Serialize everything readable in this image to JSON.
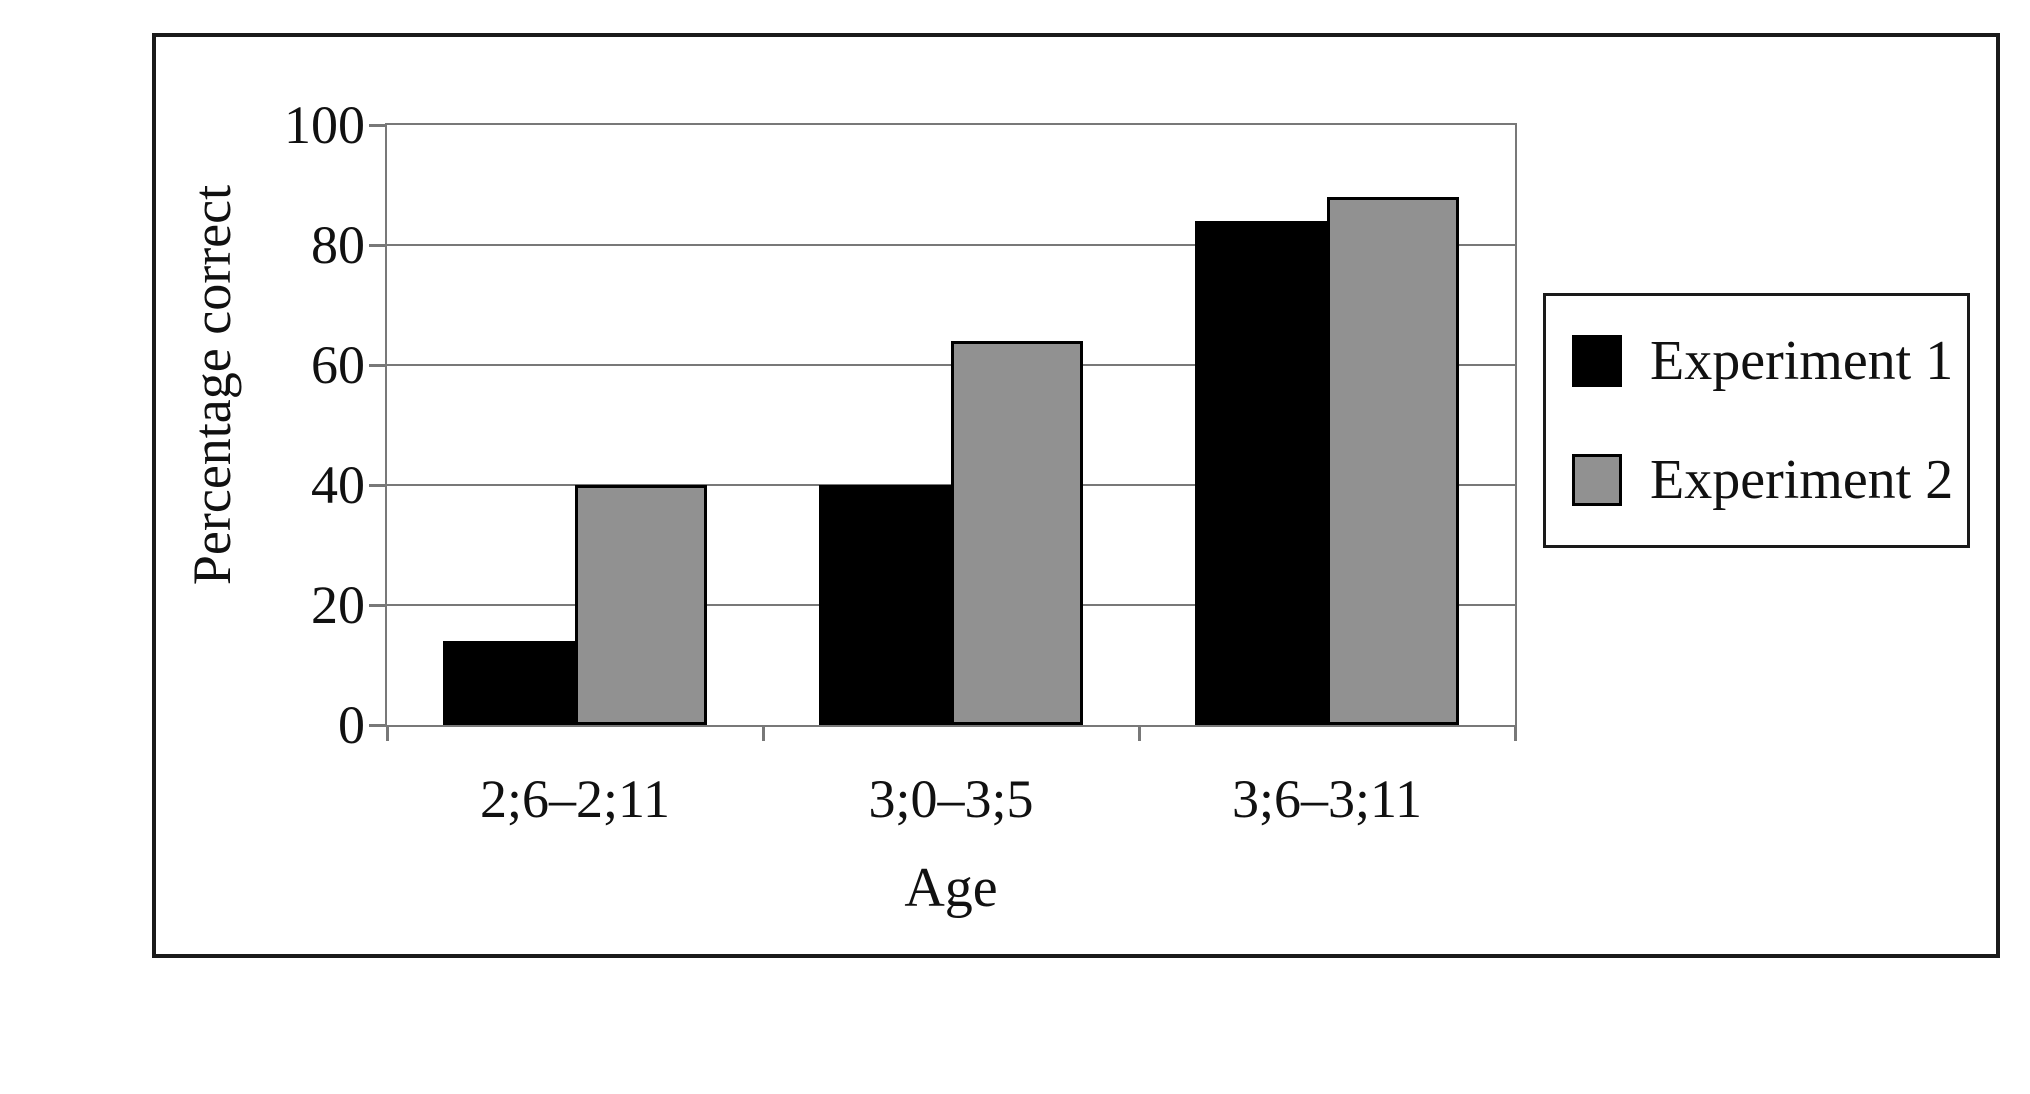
{
  "chart_data": {
    "type": "bar",
    "ylabel": "Percentage correct",
    "xlabel": "Age",
    "ylim": [
      0,
      100
    ],
    "yticks": [
      0,
      20,
      40,
      60,
      80,
      100
    ],
    "grid": true,
    "legend_position": "right-outside",
    "categories": [
      "2;6–2;11",
      "3;0–3;5",
      "3;6–3;11"
    ],
    "series": [
      {
        "name": "Experiment 1",
        "color": "#000000",
        "values": [
          14,
          40,
          84
        ]
      },
      {
        "name": "Experiment 2",
        "color": "#919191",
        "values": [
          40,
          64,
          88
        ]
      }
    ],
    "colors": {
      "gridline": "#787878",
      "frame": "#1a1a1a",
      "text": "#111111",
      "background": "#ffffff"
    }
  }
}
